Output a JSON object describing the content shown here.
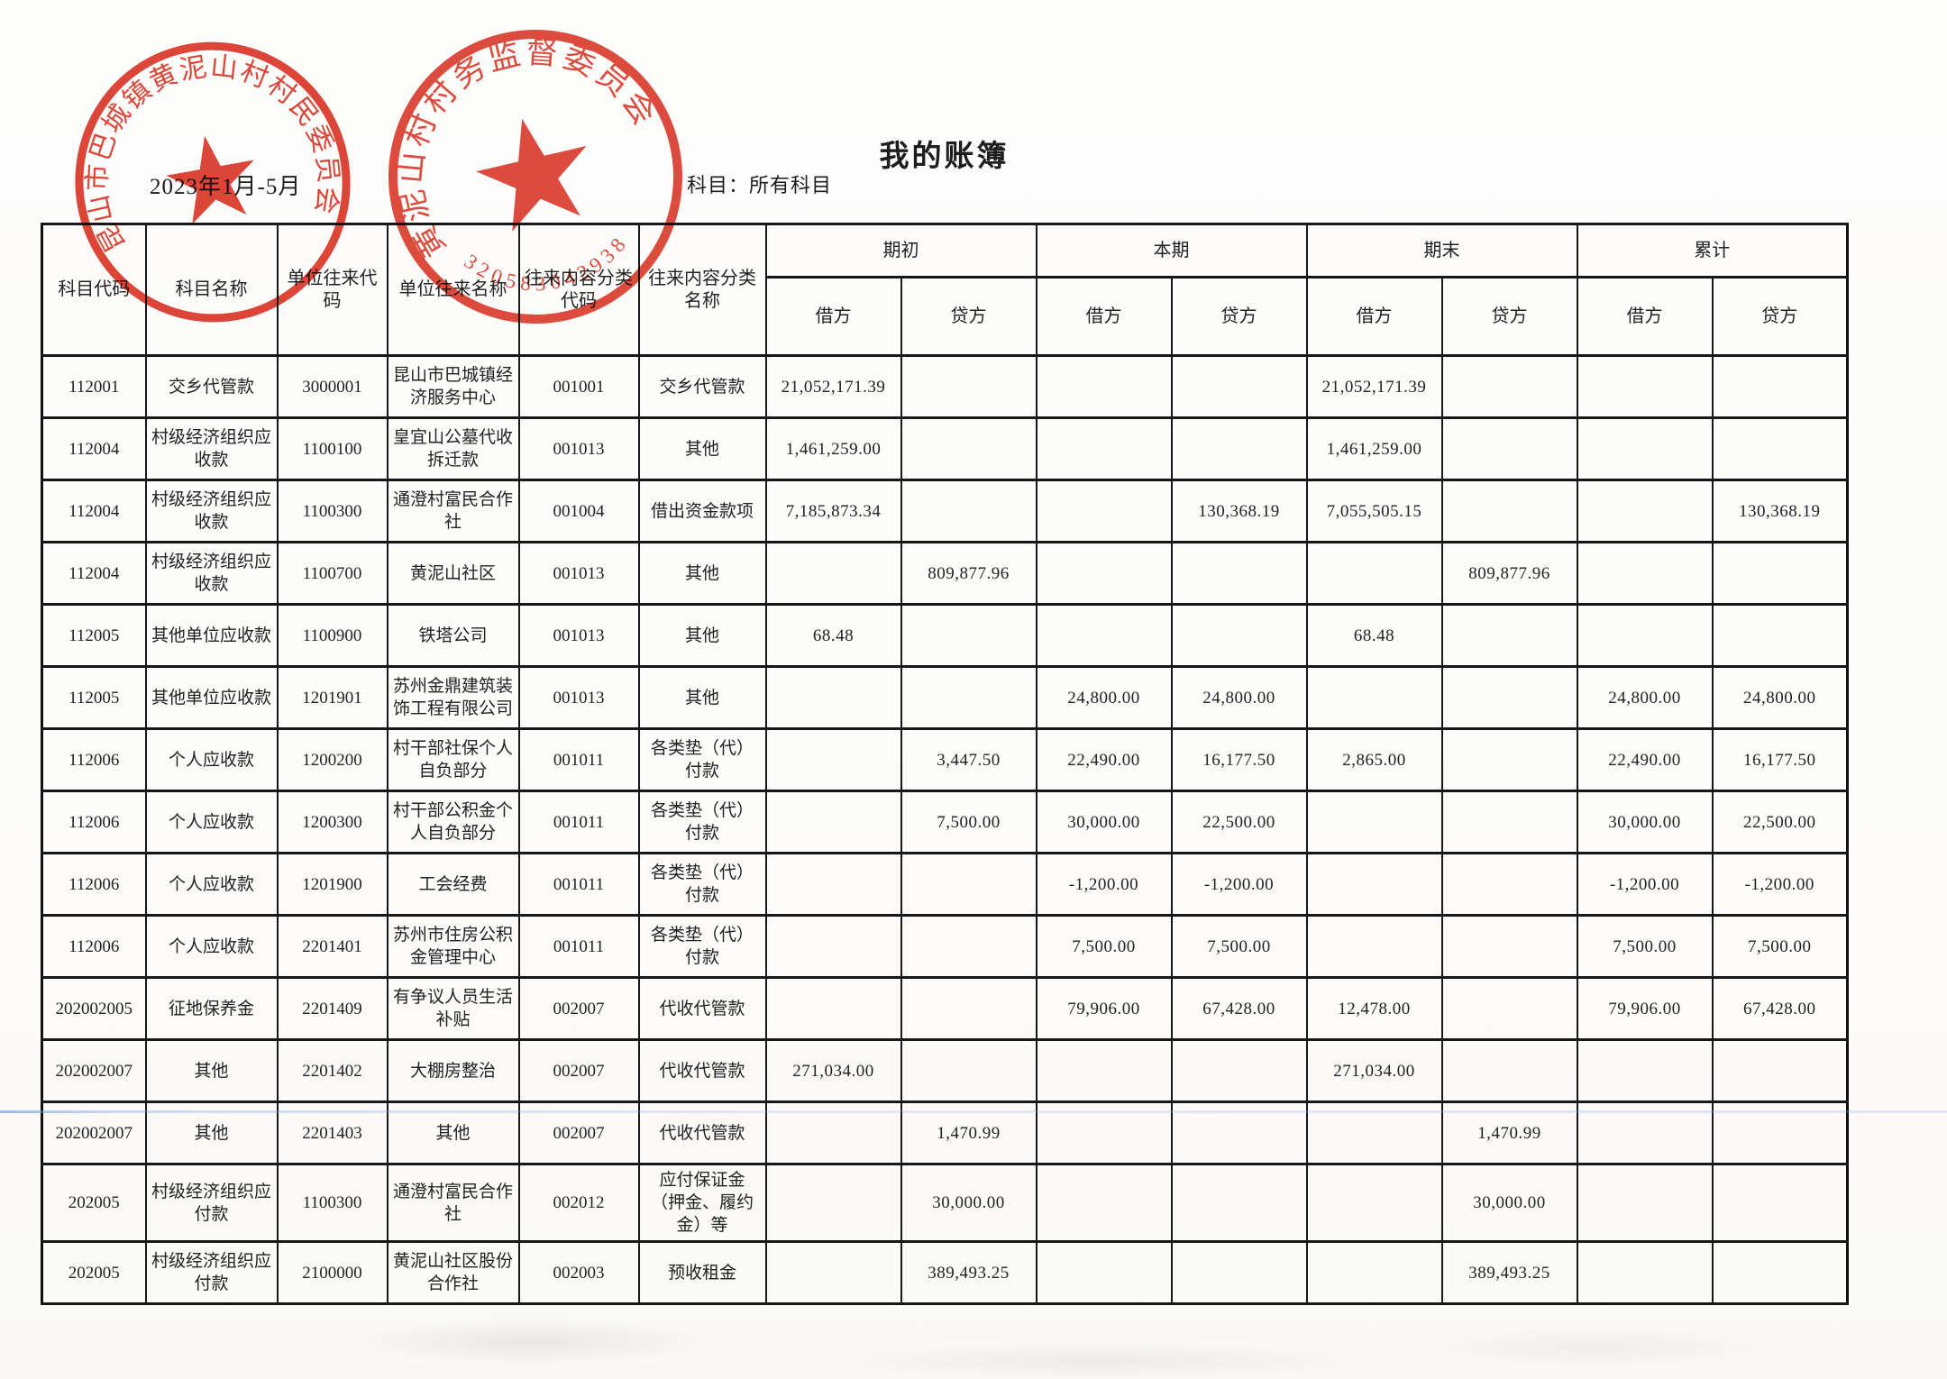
{
  "page": {
    "title": "我的账簿",
    "subject_line": "科目：所有科目",
    "period": "2023年1月-5月"
  },
  "colors": {
    "stamp_red": "#d92c1c",
    "ink": "#1d1d1d",
    "table_border": "#171717",
    "artifact_blue": "#7d9bd2"
  },
  "stamps": [
    {
      "id": "village-committee-stamp",
      "ring_text": "昆山市巴城镇黄泥山村村民委员会"
    },
    {
      "id": "supervision-committee-stamp",
      "ring_text": "黄泥山村村务监督委员会",
      "serial": "320583042938"
    }
  ],
  "table": {
    "column_headers": {
      "subject_code": "科目代码",
      "subject_name": "科目名称",
      "unit_code": "单位往来代码",
      "unit_name": "单位往来名称",
      "class_code": "往来内容分类代码",
      "class_name": "往来内容分类名称"
    },
    "period_groups": [
      "期初",
      "本期",
      "期末",
      "累计"
    ],
    "debit_label": "借方",
    "credit_label": "贷方",
    "rows": [
      {
        "subject_code": "112001",
        "subject_name": "交乡代管款",
        "unit_code": "3000001",
        "unit_name": "昆山市巴城镇经济服务中心",
        "class_code": "001001",
        "class_name": "交乡代管款",
        "values": [
          "21,052,171.39",
          "",
          "",
          "",
          "21,052,171.39",
          "",
          "",
          ""
        ]
      },
      {
        "subject_code": "112004",
        "subject_name": "村级经济组织应收款",
        "unit_code": "1100100",
        "unit_name": "皇宜山公墓代收拆迁款",
        "class_code": "001013",
        "class_name": "其他",
        "values": [
          "1,461,259.00",
          "",
          "",
          "",
          "1,461,259.00",
          "",
          "",
          ""
        ]
      },
      {
        "subject_code": "112004",
        "subject_name": "村级经济组织应收款",
        "unit_code": "1100300",
        "unit_name": "通澄村富民合作社",
        "class_code": "001004",
        "class_name": "借出资金款项",
        "values": [
          "7,185,873.34",
          "",
          "",
          "130,368.19",
          "7,055,505.15",
          "",
          "",
          "130,368.19"
        ]
      },
      {
        "subject_code": "112004",
        "subject_name": "村级经济组织应收款",
        "unit_code": "1100700",
        "unit_name": "黄泥山社区",
        "class_code": "001013",
        "class_name": "其他",
        "values": [
          "",
          "809,877.96",
          "",
          "",
          "",
          "809,877.96",
          "",
          ""
        ]
      },
      {
        "subject_code": "112005",
        "subject_name": "其他单位应收款",
        "unit_code": "1100900",
        "unit_name": "铁塔公司",
        "class_code": "001013",
        "class_name": "其他",
        "values": [
          "68.48",
          "",
          "",
          "",
          "68.48",
          "",
          "",
          ""
        ]
      },
      {
        "subject_code": "112005",
        "subject_name": "其他单位应收款",
        "unit_code": "1201901",
        "unit_name": "苏州金鼎建筑装饰工程有限公司",
        "class_code": "001013",
        "class_name": "其他",
        "values": [
          "",
          "",
          "24,800.00",
          "24,800.00",
          "",
          "",
          "24,800.00",
          "24,800.00"
        ]
      },
      {
        "subject_code": "112006",
        "subject_name": "个人应收款",
        "unit_code": "1200200",
        "unit_name": "村干部社保个人自负部分",
        "class_code": "001011",
        "class_name": "各类垫（代）付款",
        "values": [
          "",
          "3,447.50",
          "22,490.00",
          "16,177.50",
          "2,865.00",
          "",
          "22,490.00",
          "16,177.50"
        ]
      },
      {
        "subject_code": "112006",
        "subject_name": "个人应收款",
        "unit_code": "1200300",
        "unit_name": "村干部公积金个人自负部分",
        "class_code": "001011",
        "class_name": "各类垫（代）付款",
        "values": [
          "",
          "7,500.00",
          "30,000.00",
          "22,500.00",
          "",
          "",
          "30,000.00",
          "22,500.00"
        ]
      },
      {
        "subject_code": "112006",
        "subject_name": "个人应收款",
        "unit_code": "1201900",
        "unit_name": "工会经费",
        "class_code": "001011",
        "class_name": "各类垫（代）付款",
        "values": [
          "",
          "",
          "-1,200.00",
          "-1,200.00",
          "",
          "",
          "-1,200.00",
          "-1,200.00"
        ]
      },
      {
        "subject_code": "112006",
        "subject_name": "个人应收款",
        "unit_code": "2201401",
        "unit_name": "苏州市住房公积金管理中心",
        "class_code": "001011",
        "class_name": "各类垫（代）付款",
        "values": [
          "",
          "",
          "7,500.00",
          "7,500.00",
          "",
          "",
          "7,500.00",
          "7,500.00"
        ]
      },
      {
        "subject_code": "202002005",
        "subject_name": "征地保养金",
        "unit_code": "2201409",
        "unit_name": "有争议人员生活补贴",
        "class_code": "002007",
        "class_name": "代收代管款",
        "values": [
          "",
          "",
          "79,906.00",
          "67,428.00",
          "12,478.00",
          "",
          "79,906.00",
          "67,428.00"
        ]
      },
      {
        "subject_code": "202002007",
        "subject_name": "其他",
        "unit_code": "2201402",
        "unit_name": "大棚房整治",
        "class_code": "002007",
        "class_name": "代收代管款",
        "values": [
          "271,034.00",
          "",
          "",
          "",
          "271,034.00",
          "",
          "",
          ""
        ]
      },
      {
        "subject_code": "202002007",
        "subject_name": "其他",
        "unit_code": "2201403",
        "unit_name": "其他",
        "class_code": "002007",
        "class_name": "代收代管款",
        "values": [
          "",
          "1,470.99",
          "",
          "",
          "",
          "1,470.99",
          "",
          ""
        ]
      },
      {
        "subject_code": "202005",
        "subject_name": "村级经济组织应付款",
        "unit_code": "1100300",
        "unit_name": "通澄村富民合作社",
        "class_code": "002012",
        "class_name": "应付保证金（押金、履约金）等",
        "values": [
          "",
          "30,000.00",
          "",
          "",
          "",
          "30,000.00",
          "",
          ""
        ]
      },
      {
        "subject_code": "202005",
        "subject_name": "村级经济组织应付款",
        "unit_code": "2100000",
        "unit_name": "黄泥山社区股份合作社",
        "class_code": "002003",
        "class_name": "预收租金",
        "values": [
          "",
          "389,493.25",
          "",
          "",
          "",
          "389,493.25",
          "",
          ""
        ]
      }
    ]
  }
}
